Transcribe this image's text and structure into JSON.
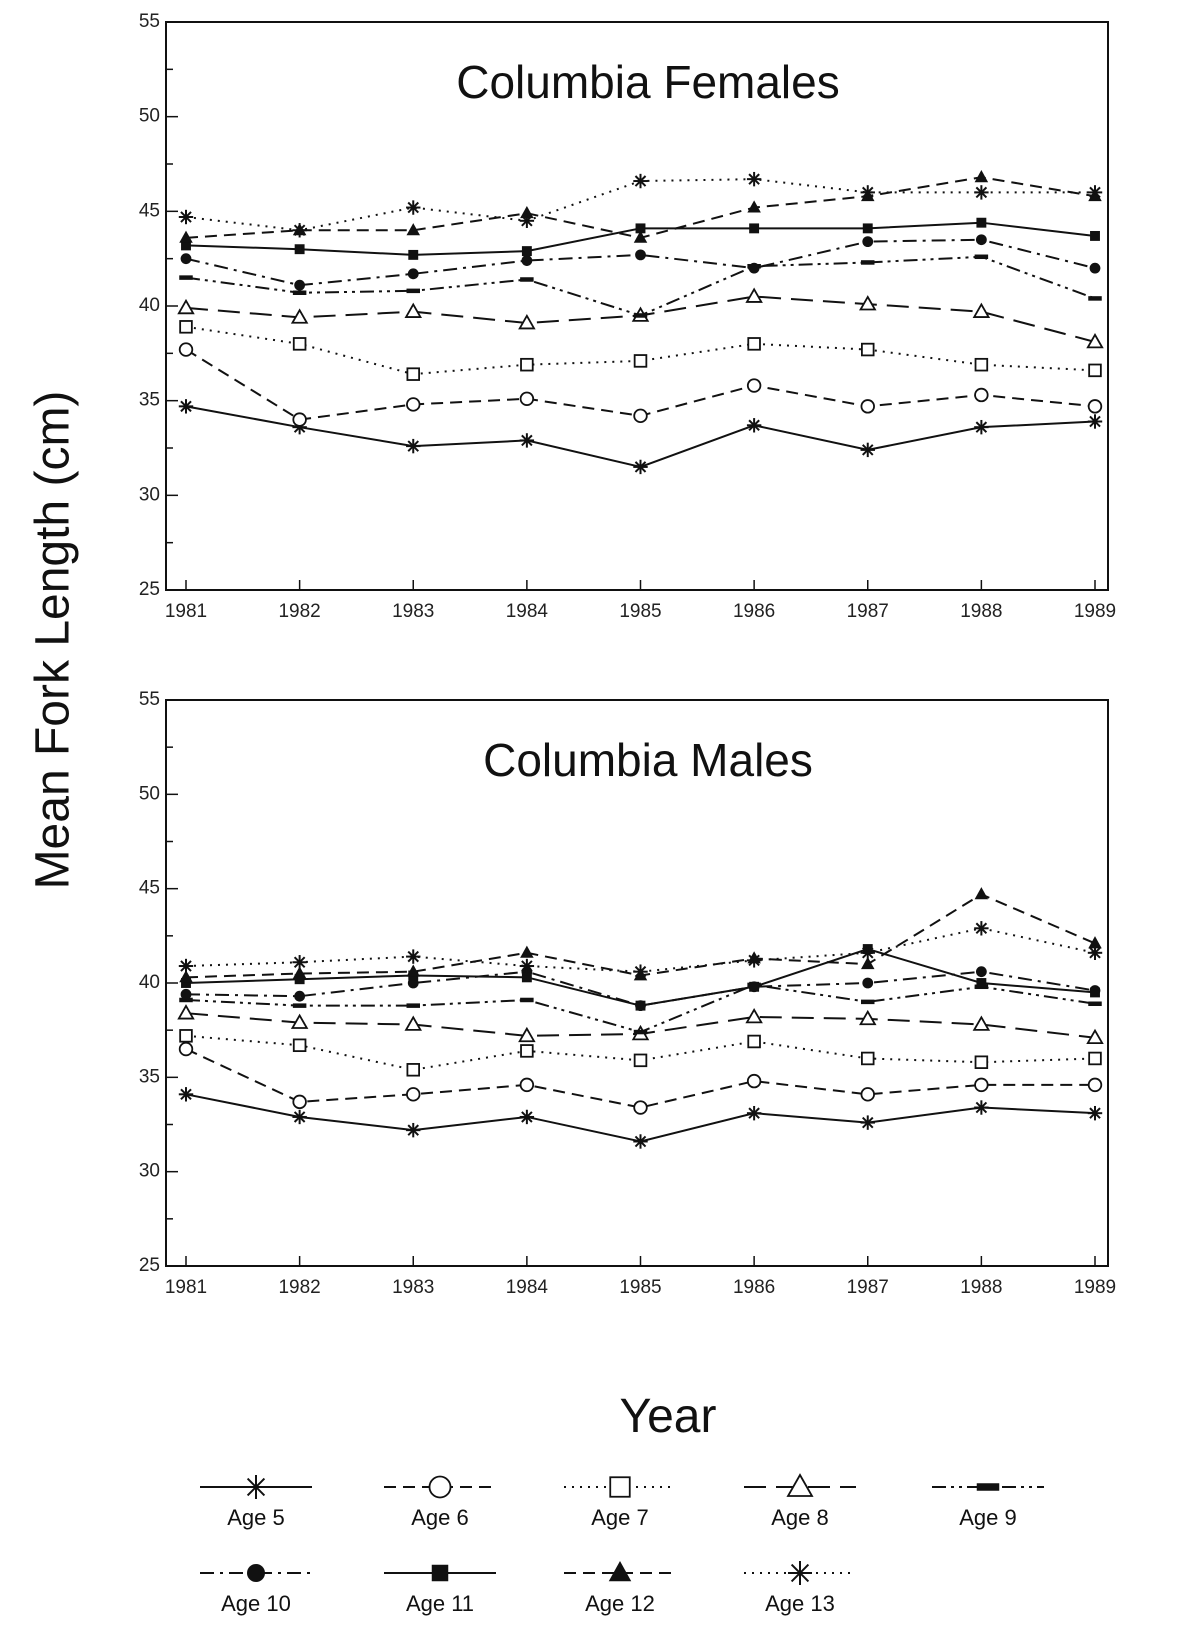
{
  "ylabel": "Mean Fork Length (cm)",
  "xlabel": "Year",
  "legend": {
    "entries": [
      {
        "label": "Age 5",
        "marker": "asterisk",
        "dash": "solid"
      },
      {
        "label": "Age 6",
        "marker": "open-circle",
        "dash": "dashed"
      },
      {
        "label": "Age 7",
        "marker": "open-square",
        "dash": "dotted"
      },
      {
        "label": "Age 8",
        "marker": "open-triangle",
        "dash": "longdash"
      },
      {
        "label": "Age 9",
        "marker": "dash-bar",
        "dash": "dashdotdot"
      },
      {
        "label": "Age 10",
        "marker": "filled-circle",
        "dash": "dashdot"
      },
      {
        "label": "Age 11",
        "marker": "filled-square",
        "dash": "solid"
      },
      {
        "label": "Age 12",
        "marker": "filled-triangle",
        "dash": "dashed"
      },
      {
        "label": "Age 13",
        "marker": "asterisk-x",
        "dash": "dotted"
      }
    ]
  },
  "chart_data": [
    {
      "type": "line",
      "title": "Columbia Females",
      "x": [
        "1981",
        "1982",
        "1983",
        "1984",
        "1985",
        "1986",
        "1987",
        "1988",
        "1989"
      ],
      "x_tick_labels": [
        "1981",
        "1982",
        "1983",
        "1984",
        "1985",
        "1986",
        "1987",
        "1988",
        "1989"
      ],
      "ylim": [
        25,
        55
      ],
      "y_ticks": [
        25,
        30,
        35,
        40,
        45,
        50,
        55
      ],
      "series": [
        {
          "name": "Age 5",
          "values": [
            34.7,
            33.6,
            32.6,
            32.9,
            31.5,
            33.7,
            32.4,
            33.6,
            33.9
          ]
        },
        {
          "name": "Age 6",
          "values": [
            37.7,
            34.0,
            34.8,
            35.1,
            34.2,
            35.8,
            34.7,
            35.3,
            34.7
          ]
        },
        {
          "name": "Age 7",
          "values": [
            38.9,
            38.0,
            36.4,
            36.9,
            37.1,
            38.0,
            37.7,
            36.9,
            36.6
          ]
        },
        {
          "name": "Age 8",
          "values": [
            39.9,
            39.4,
            39.7,
            39.1,
            39.5,
            40.5,
            40.1,
            39.7,
            38.1
          ]
        },
        {
          "name": "Age 9",
          "values": [
            41.5,
            40.7,
            40.8,
            41.4,
            39.5,
            42.1,
            42.3,
            42.6,
            40.4
          ]
        },
        {
          "name": "Age 10",
          "values": [
            42.5,
            41.1,
            41.7,
            42.4,
            42.7,
            42.0,
            43.4,
            43.5,
            42.0
          ]
        },
        {
          "name": "Age 11",
          "values": [
            43.2,
            43.0,
            42.7,
            42.9,
            44.1,
            44.1,
            44.1,
            44.4,
            43.7
          ]
        },
        {
          "name": "Age 12",
          "values": [
            43.6,
            44.0,
            44.0,
            44.9,
            43.6,
            45.2,
            45.8,
            46.8,
            45.8
          ]
        },
        {
          "name": "Age 13",
          "values": [
            44.7,
            44.0,
            45.2,
            44.5,
            46.6,
            46.7,
            46.0,
            46.0,
            46.0
          ]
        }
      ]
    },
    {
      "type": "line",
      "title": "Columbia Males",
      "x": [
        "1981",
        "1982",
        "1983",
        "1984",
        "1985",
        "1986",
        "1987",
        "1988",
        "1989"
      ],
      "x_tick_labels": [
        "1981",
        "1982",
        "1983",
        "1984",
        "1985",
        "1986",
        "1987",
        "1988",
        "1989"
      ],
      "ylim": [
        25,
        55
      ],
      "y_ticks": [
        25,
        30,
        35,
        40,
        45,
        50,
        55
      ],
      "series": [
        {
          "name": "Age 5",
          "values": [
            34.1,
            32.9,
            32.2,
            32.9,
            31.6,
            33.1,
            32.6,
            33.4,
            33.1
          ]
        },
        {
          "name": "Age 6",
          "values": [
            36.5,
            33.7,
            34.1,
            34.6,
            33.4,
            34.8,
            34.1,
            34.6,
            34.6
          ]
        },
        {
          "name": "Age 7",
          "values": [
            37.2,
            36.7,
            35.4,
            36.4,
            35.9,
            36.9,
            36.0,
            35.8,
            36.0
          ]
        },
        {
          "name": "Age 8",
          "values": [
            38.4,
            37.9,
            37.8,
            37.2,
            37.3,
            38.2,
            38.1,
            37.8,
            37.1
          ]
        },
        {
          "name": "Age 9",
          "values": [
            39.1,
            38.8,
            38.8,
            39.1,
            37.4,
            39.9,
            39.0,
            39.8,
            38.9
          ]
        },
        {
          "name": "Age 10",
          "values": [
            39.4,
            39.3,
            40.0,
            40.6,
            38.8,
            39.8,
            40.0,
            40.6,
            39.6
          ]
        },
        {
          "name": "Age 11",
          "values": [
            40.0,
            40.2,
            40.4,
            40.3,
            38.8,
            39.8,
            41.8,
            40.0,
            39.5
          ]
        },
        {
          "name": "Age 12",
          "values": [
            40.3,
            40.5,
            40.6,
            41.6,
            40.4,
            41.3,
            41.0,
            44.7,
            42.1
          ]
        },
        {
          "name": "Age 13",
          "values": [
            40.9,
            41.1,
            41.4,
            40.9,
            40.6,
            41.2,
            41.6,
            42.9,
            41.6
          ]
        }
      ]
    }
  ]
}
